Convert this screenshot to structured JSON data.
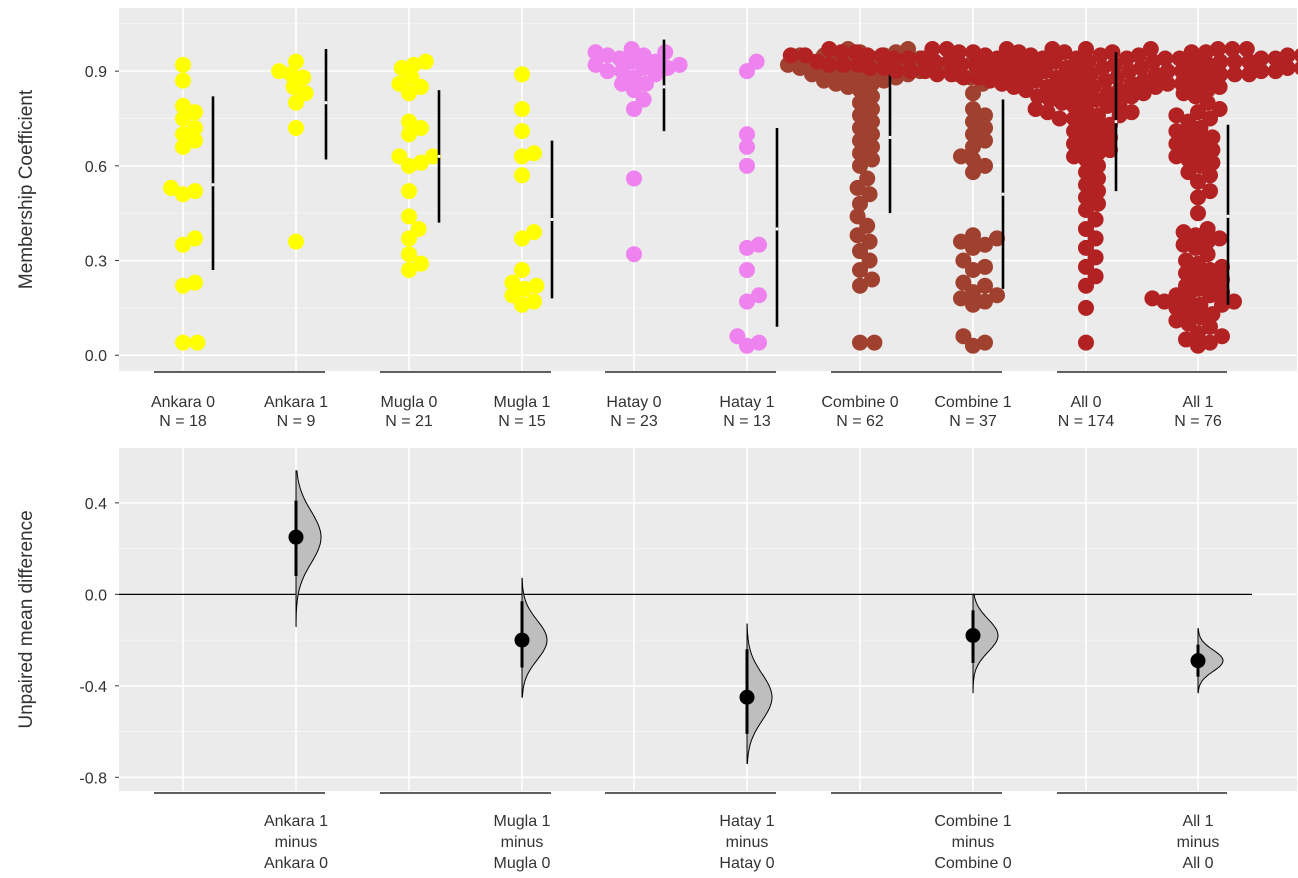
{
  "colors": {
    "panel_bg": "#EBEBEB",
    "grid_major": "#FFFFFF",
    "grid_minor": "#F4F4F4",
    "text": "#333333",
    "ankara": "#FFFF00",
    "mugla": "#FFFF00",
    "hatay": "#EE82EE",
    "combine": "#A0402E",
    "all": "#B22222",
    "halfeye_fill": "#BEBEBE"
  },
  "chart_data": [
    {
      "type": "scatter",
      "subtype": "swarm",
      "ylabel": "Membership Coefficient",
      "xlabel": "",
      "ylim": [
        -0.05,
        1.1
      ],
      "yticks": [
        0.0,
        0.3,
        0.6,
        0.9
      ],
      "ytick_labels": [
        "0.0",
        "0.3",
        "0.6",
        "0.9"
      ],
      "grid": true,
      "groups": [
        {
          "name": "Ankara 0",
          "n_label": "N = 18",
          "color_key": "ankara",
          "values": [
            0.04,
            0.04,
            0.22,
            0.23,
            0.35,
            0.37,
            0.51,
            0.52,
            0.53,
            0.66,
            0.68,
            0.7,
            0.72,
            0.75,
            0.77,
            0.79,
            0.87,
            0.92
          ],
          "summary": {
            "mean": 0.54,
            "low": 0.27,
            "high": 0.82
          }
        },
        {
          "name": "Ankara 1",
          "n_label": "N = 9",
          "color_key": "ankara",
          "values": [
            0.36,
            0.72,
            0.8,
            0.83,
            0.85,
            0.88,
            0.89,
            0.9,
            0.93
          ],
          "summary": {
            "mean": 0.8,
            "low": 0.62,
            "high": 0.97
          }
        },
        {
          "name": "Mugla 0",
          "n_label": "N = 21",
          "color_key": "mugla",
          "values": [
            0.27,
            0.29,
            0.32,
            0.37,
            0.4,
            0.44,
            0.52,
            0.6,
            0.61,
            0.63,
            0.63,
            0.7,
            0.72,
            0.74,
            0.83,
            0.85,
            0.86,
            0.88,
            0.91,
            0.92,
            0.93
          ],
          "summary": {
            "mean": 0.63,
            "low": 0.42,
            "high": 0.84
          }
        },
        {
          "name": "Mugla 1",
          "n_label": "N = 15",
          "color_key": "mugla",
          "values": [
            0.16,
            0.17,
            0.19,
            0.21,
            0.22,
            0.23,
            0.27,
            0.37,
            0.39,
            0.57,
            0.63,
            0.64,
            0.71,
            0.78,
            0.89
          ],
          "summary": {
            "mean": 0.43,
            "low": 0.18,
            "high": 0.68
          }
        },
        {
          "name": "Hatay 0",
          "n_label": "N = 23",
          "color_key": "hatay",
          "values": [
            0.32,
            0.56,
            0.78,
            0.81,
            0.84,
            0.86,
            0.86,
            0.88,
            0.89,
            0.9,
            0.9,
            0.91,
            0.91,
            0.92,
            0.92,
            0.93,
            0.93,
            0.94,
            0.95,
            0.95,
            0.96,
            0.96,
            0.97
          ],
          "summary": {
            "mean": 0.85,
            "low": 0.71,
            "high": 1.0
          }
        },
        {
          "name": "Hatay 1",
          "n_label": "N = 13",
          "color_key": "hatay",
          "values": [
            0.03,
            0.04,
            0.06,
            0.17,
            0.19,
            0.27,
            0.34,
            0.35,
            0.6,
            0.66,
            0.7,
            0.9,
            0.93
          ],
          "summary": {
            "mean": 0.4,
            "low": 0.09,
            "high": 0.72
          }
        },
        {
          "name": "Combine 0",
          "n_label": "N = 62",
          "color_key": "combine",
          "values": [
            0.04,
            0.04,
            0.22,
            0.24,
            0.27,
            0.3,
            0.33,
            0.36,
            0.38,
            0.41,
            0.44,
            0.48,
            0.51,
            0.53,
            0.56,
            0.6,
            0.62,
            0.64,
            0.66,
            0.68,
            0.7,
            0.72,
            0.74,
            0.76,
            0.78,
            0.8,
            0.82,
            0.84,
            0.85,
            0.86,
            0.86,
            0.87,
            0.87,
            0.88,
            0.88,
            0.89,
            0.89,
            0.89,
            0.9,
            0.9,
            0.9,
            0.91,
            0.91,
            0.91,
            0.91,
            0.92,
            0.92,
            0.92,
            0.92,
            0.93,
            0.93,
            0.93,
            0.94,
            0.94,
            0.94,
            0.95,
            0.95,
            0.95,
            0.96,
            0.96,
            0.97,
            0.97
          ],
          "summary": {
            "mean": 0.69,
            "low": 0.45,
            "high": 0.94
          }
        },
        {
          "name": "Combine 1",
          "n_label": "N = 37",
          "color_key": "combine",
          "values": [
            0.03,
            0.04,
            0.06,
            0.16,
            0.17,
            0.18,
            0.19,
            0.2,
            0.22,
            0.23,
            0.27,
            0.28,
            0.3,
            0.34,
            0.35,
            0.36,
            0.37,
            0.38,
            0.58,
            0.6,
            0.62,
            0.63,
            0.66,
            0.68,
            0.7,
            0.72,
            0.74,
            0.76,
            0.78,
            0.83,
            0.86,
            0.88,
            0.89,
            0.9,
            0.91,
            0.93,
            0.94
          ],
          "summary": {
            "mean": 0.51,
            "low": 0.21,
            "high": 0.81
          }
        },
        {
          "name": "All 0",
          "n_label": "N = 174",
          "color_key": "all",
          "values": [
            0.04,
            0.15,
            0.22,
            0.25,
            0.28,
            0.31,
            0.34,
            0.37,
            0.4,
            0.43,
            0.46,
            0.48,
            0.5,
            0.52,
            0.54,
            0.56,
            0.58,
            0.6,
            0.62,
            0.63,
            0.64,
            0.65,
            0.66,
            0.67,
            0.68,
            0.69,
            0.7,
            0.71,
            0.72,
            0.73,
            0.74,
            0.75,
            0.75,
            0.76,
            0.76,
            0.77,
            0.77,
            0.78,
            0.78,
            0.79,
            0.79,
            0.8,
            0.8,
            0.81,
            0.81,
            0.82,
            0.82,
            0.82,
            0.83,
            0.83,
            0.83,
            0.84,
            0.84,
            0.84,
            0.85,
            0.85,
            0.85,
            0.85,
            0.86,
            0.86,
            0.86,
            0.86,
            0.86,
            0.87,
            0.87,
            0.87,
            0.87,
            0.87,
            0.88,
            0.88,
            0.88,
            0.88,
            0.88,
            0.88,
            0.88,
            0.89,
            0.89,
            0.89,
            0.89,
            0.89,
            0.89,
            0.89,
            0.89,
            0.9,
            0.9,
            0.9,
            0.9,
            0.9,
            0.9,
            0.9,
            0.9,
            0.9,
            0.9,
            0.9,
            0.91,
            0.91,
            0.91,
            0.91,
            0.91,
            0.91,
            0.91,
            0.91,
            0.91,
            0.91,
            0.92,
            0.92,
            0.92,
            0.92,
            0.92,
            0.92,
            0.92,
            0.92,
            0.92,
            0.92,
            0.92,
            0.93,
            0.93,
            0.93,
            0.93,
            0.93,
            0.93,
            0.93,
            0.93,
            0.93,
            0.93,
            0.93,
            0.94,
            0.94,
            0.94,
            0.94,
            0.94,
            0.94,
            0.94,
            0.94,
            0.94,
            0.94,
            0.94,
            0.94,
            0.95,
            0.95,
            0.95,
            0.95,
            0.95,
            0.95,
            0.95,
            0.95,
            0.95,
            0.95,
            0.95,
            0.95,
            0.96,
            0.96,
            0.96,
            0.96,
            0.96,
            0.96,
            0.96,
            0.96,
            0.96,
            0.96,
            0.96,
            0.97,
            0.97,
            0.97,
            0.97,
            0.97,
            0.97,
            0.97,
            0.97,
            0.97,
            0.97,
            0.97
          ],
          "summary": {
            "mean": 0.74,
            "low": 0.52,
            "high": 0.96
          }
        },
        {
          "name": "All 1",
          "n_label": "N = 76",
          "color_key": "all",
          "values": [
            0.03,
            0.04,
            0.05,
            0.06,
            0.07,
            0.09,
            0.1,
            0.11,
            0.12,
            0.13,
            0.14,
            0.15,
            0.16,
            0.16,
            0.17,
            0.17,
            0.18,
            0.18,
            0.19,
            0.19,
            0.2,
            0.21,
            0.22,
            0.23,
            0.24,
            0.25,
            0.26,
            0.27,
            0.28,
            0.29,
            0.3,
            0.32,
            0.34,
            0.35,
            0.36,
            0.37,
            0.38,
            0.39,
            0.4,
            0.45,
            0.5,
            0.52,
            0.55,
            0.57,
            0.58,
            0.6,
            0.61,
            0.62,
            0.63,
            0.64,
            0.65,
            0.66,
            0.67,
            0.68,
            0.69,
            0.7,
            0.71,
            0.72,
            0.74,
            0.75,
            0.76,
            0.77,
            0.78,
            0.8,
            0.82,
            0.83,
            0.84,
            0.85,
            0.86,
            0.87,
            0.88,
            0.89,
            0.9,
            0.91,
            0.93,
            0.94
          ],
          "summary": {
            "mean": 0.44,
            "low": 0.16,
            "high": 0.73
          }
        }
      ],
      "bracket_pairs": [
        [
          "Ankara 0",
          "Ankara 1"
        ],
        [
          "Mugla 0",
          "Mugla 1"
        ],
        [
          "Hatay 0",
          "Hatay 1"
        ],
        [
          "Combine 0",
          "Combine 1"
        ],
        [
          "All 0",
          "All 1"
        ]
      ]
    },
    {
      "type": "scatter",
      "subtype": "estimation",
      "ylabel": "Unpaired mean difference",
      "xlabel": "",
      "ylim": [
        -0.86,
        0.64
      ],
      "yticks": [
        -0.8,
        -0.4,
        0.0,
        0.4
      ],
      "ytick_labels": [
        "-0.8",
        "-0.4",
        "0.0",
        "0.4"
      ],
      "grid": true,
      "zero_line": 0.0,
      "comparisons": [
        {
          "label_lines": [
            "Ankara 1",
            "minus",
            "Ankara 0"
          ],
          "align_with": "Ankara 1",
          "mean": 0.25,
          "ci": [
            0.08,
            0.41
          ],
          "dist_range": [
            -0.14,
            0.54
          ]
        },
        {
          "label_lines": [
            "Mugla 1",
            "minus",
            "Mugla 0"
          ],
          "align_with": "Mugla 1",
          "mean": -0.2,
          "ci": [
            -0.32,
            -0.03
          ],
          "dist_range": [
            -0.45,
            0.07
          ]
        },
        {
          "label_lines": [
            "Hatay 1",
            "minus",
            "Hatay 0"
          ],
          "align_with": "Hatay 1",
          "mean": -0.45,
          "ci": [
            -0.61,
            -0.24
          ],
          "dist_range": [
            -0.74,
            -0.13
          ]
        },
        {
          "label_lines": [
            "Combine 1",
            "minus",
            "Combine 0"
          ],
          "align_with": "Combine 1",
          "mean": -0.18,
          "ci": [
            -0.3,
            -0.07
          ],
          "dist_range": [
            -0.43,
            0.0
          ]
        },
        {
          "label_lines": [
            "All 1",
            "minus",
            "All 0"
          ],
          "align_with": "All 1",
          "mean": -0.29,
          "ci": [
            -0.36,
            -0.22
          ],
          "dist_range": [
            -0.43,
            -0.15
          ]
        }
      ]
    }
  ]
}
